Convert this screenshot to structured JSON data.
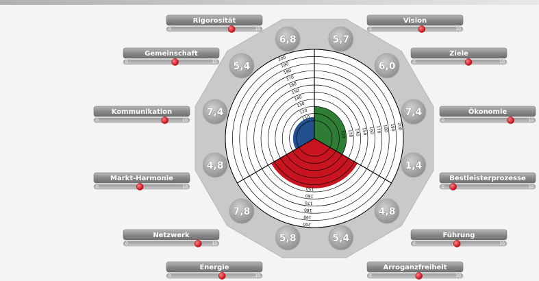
{
  "items": [
    {
      "name": "Vision",
      "value": 5.7,
      "value_label": "5,7"
    },
    {
      "name": "Ziele",
      "value": 6.0,
      "value_label": "6,0"
    },
    {
      "name": "Ökonomie",
      "value": 7.4,
      "value_label": "7,4"
    },
    {
      "name": "Bestleisterprozesse",
      "value": 1.4,
      "value_label": "1,4"
    },
    {
      "name": "Führung",
      "value": 4.8,
      "value_label": "4,8"
    },
    {
      "name": "Arroganzfreiheit",
      "value": 5.4,
      "value_label": "5,4"
    },
    {
      "name": "Energie",
      "value": 5.8,
      "value_label": "5,8"
    },
    {
      "name": "Netzwerk",
      "value": 7.8,
      "value_label": "7,8"
    },
    {
      "name": "Markt-Harmonie",
      "value": 4.8,
      "value_label": "4,8"
    },
    {
      "name": "Kommunikation",
      "value": 7.4,
      "value_label": "7,4"
    },
    {
      "name": "Gemeinschaft",
      "value": 5.4,
      "value_label": "5,4"
    },
    {
      "name": "Rigorosität",
      "value": 6.8,
      "value_label": "6,8"
    }
  ],
  "slider_scale": {
    "min": 0,
    "max": 10
  },
  "radar": {
    "rlim": [
      75,
      200
    ],
    "rings": [
      100,
      110,
      120,
      130,
      140,
      150,
      160,
      170,
      180,
      190,
      200
    ],
    "segments": [
      {
        "value": 120,
        "color": "#2f7d35"
      },
      {
        "value": 145,
        "color": "#c8141e"
      },
      {
        "value": 105,
        "color": "#23508f"
      }
    ]
  }
}
